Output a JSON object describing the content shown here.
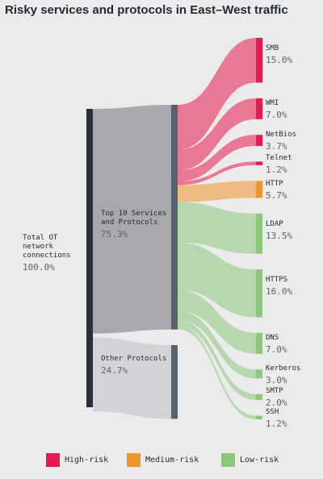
{
  "chart_data": {
    "type": "sankey",
    "title": "Risky services and protocols in East–West traffic",
    "source": {
      "label": "Total OT network connections",
      "value": 100,
      "value_label": "100.0%",
      "color": "#27313c"
    },
    "groups": [
      {
        "label": "Top 10 Services and Protocols",
        "value": 75.3,
        "value_label": "75.3%",
        "color": "#56626d",
        "flow_color": "#a7a9ad"
      },
      {
        "label": "Other Protocols",
        "value": 24.7,
        "value_label": "24.7%",
        "color": "#56626d",
        "flow_color": "#d2d3d6"
      }
    ],
    "targets": [
      {
        "label": "SMB",
        "value": 15.0,
        "value_label": "15.0%",
        "color": "#e8194f"
      },
      {
        "label": "WMI",
        "value": 7.0,
        "value_label": "7.0%",
        "color": "#e8194f"
      },
      {
        "label": "NetBios",
        "value": 3.7,
        "value_label": "3.7%",
        "color": "#e8194f"
      },
      {
        "label": "Telnet",
        "value": 1.2,
        "value_label": "1.2%",
        "color": "#e8194f"
      },
      {
        "label": "HTTP",
        "value": 5.7,
        "value_label": "5.7%",
        "color": "#f0952d"
      },
      {
        "label": "LDAP",
        "value": 13.5,
        "value_label": "13.5%",
        "color": "#8cc77b"
      },
      {
        "label": "HTTPS",
        "value": 16.0,
        "value_label": "16.0%",
        "color": "#8cc77b"
      },
      {
        "label": "DNS",
        "value": 7.0,
        "value_label": "7.0%",
        "color": "#8cc77b"
      },
      {
        "label": "Kerberos",
        "value": 3.0,
        "value_label": "3.0%",
        "color": "#8cc77b"
      },
      {
        "label": "SMTP",
        "value": 2.0,
        "value_label": "2.0%",
        "color": "#8cc77b"
      },
      {
        "label": "SSH",
        "value": 1.2,
        "value_label": "1.2%",
        "color": "#8cc77b"
      }
    ],
    "legend": [
      {
        "name": "High-risk",
        "color": "#e8194f"
      },
      {
        "name": "Medium-risk",
        "color": "#f0952d"
      },
      {
        "name": "Low-risk",
        "color": "#8cc77b"
      }
    ]
  }
}
